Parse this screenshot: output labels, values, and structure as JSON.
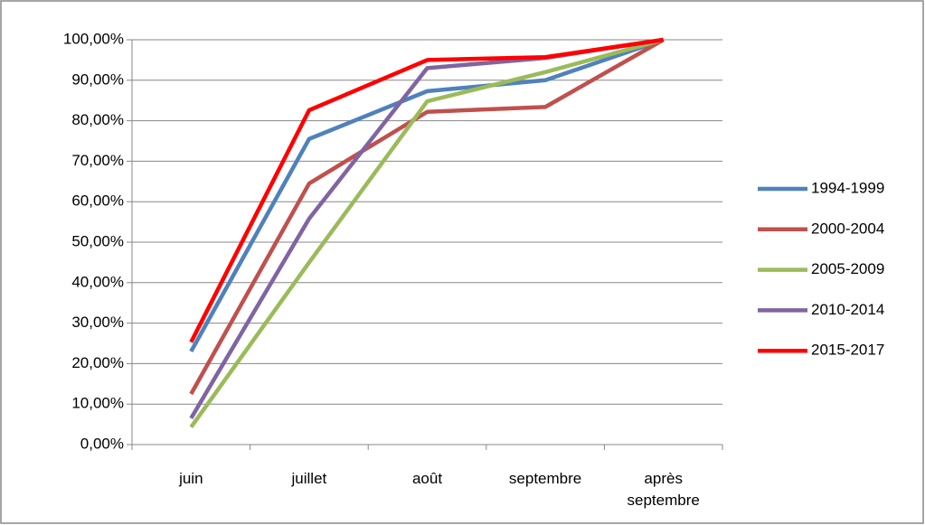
{
  "chart_data": {
    "type": "line",
    "categories": [
      "juin",
      "juillet",
      "août",
      "septembre",
      "après septembre"
    ],
    "series": [
      {
        "name": "1994-1999",
        "color": "#4f81bd",
        "values": [
          23,
          75.5,
          87.3,
          90,
          100
        ]
      },
      {
        "name": "2000-2004",
        "color": "#c0504d",
        "values": [
          12.5,
          64.5,
          82.2,
          83.4,
          100
        ]
      },
      {
        "name": "2005-2009",
        "color": "#9bbb59",
        "values": [
          4.3,
          45,
          84.8,
          92,
          100
        ]
      },
      {
        "name": "2010-2014",
        "color": "#8064a2",
        "values": [
          6.5,
          55.8,
          93,
          95.5,
          100
        ]
      },
      {
        "name": "2015-2017",
        "color": "#ff0000",
        "values": [
          25.3,
          82.6,
          95,
          95.7,
          100
        ]
      }
    ],
    "ylim": [
      0,
      100
    ],
    "yticks": [
      {
        "value": 0,
        "label": "0,00%"
      },
      {
        "value": 10,
        "label": "10,00%"
      },
      {
        "value": 20,
        "label": "20,00%"
      },
      {
        "value": 30,
        "label": "30,00%"
      },
      {
        "value": 40,
        "label": "40,00%"
      },
      {
        "value": 50,
        "label": "50,00%"
      },
      {
        "value": 60,
        "label": "60,00%"
      },
      {
        "value": 70,
        "label": "70,00%"
      },
      {
        "value": 80,
        "label": "80,00%"
      },
      {
        "value": 90,
        "label": "90,00%"
      },
      {
        "value": 100,
        "label": "100,00%"
      }
    ],
    "grid": true,
    "legend": "right"
  }
}
